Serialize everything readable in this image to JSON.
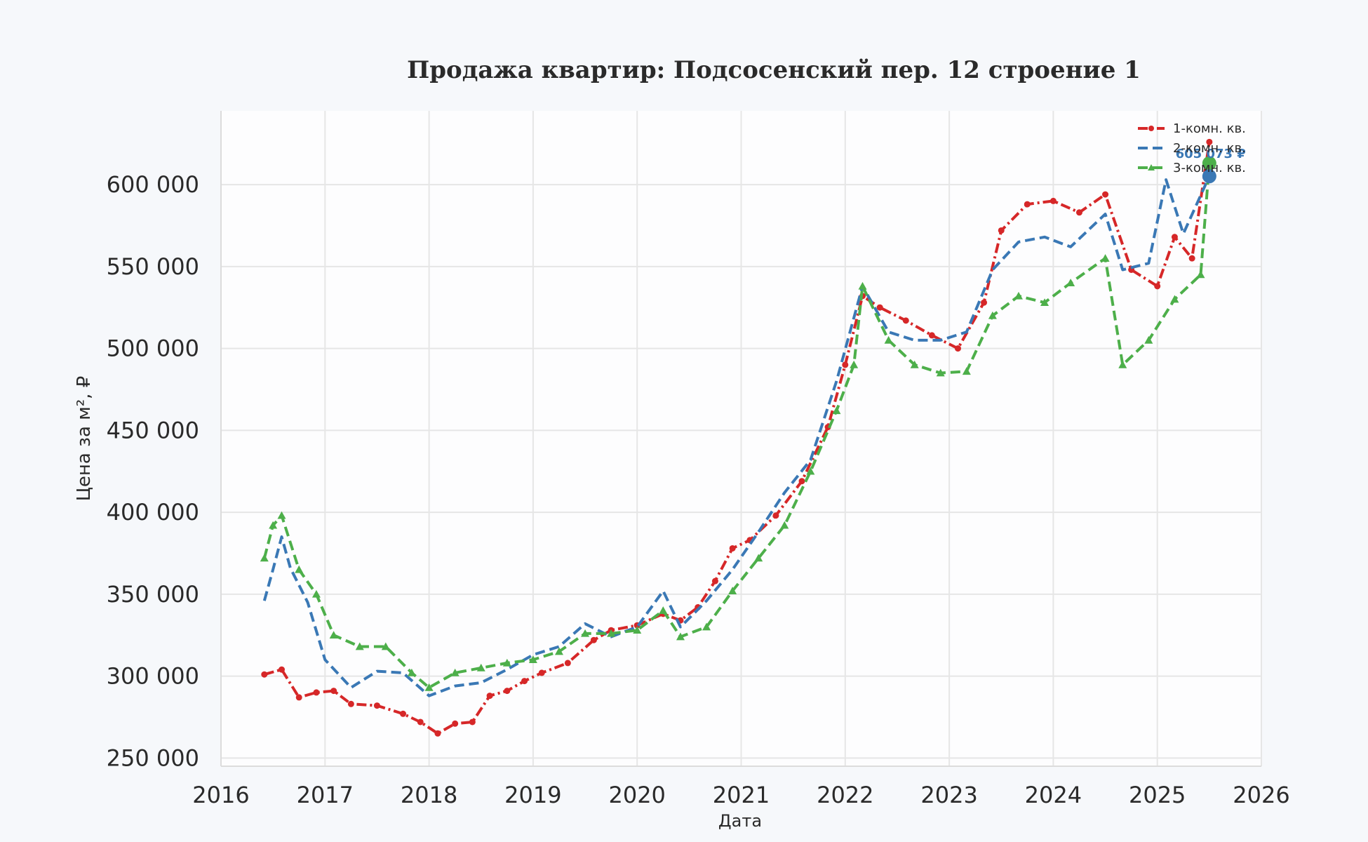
{
  "chart_data": {
    "type": "line",
    "title": "Продажа квартир: Подсосенский пер. 12 строение 1",
    "xlabel": "Дата",
    "ylabel": "Цена за м², ₽",
    "xlim": [
      "2016-01-01",
      "2026-01-01"
    ],
    "ylim": [
      245000,
      645000
    ],
    "x_ticks": [
      "2016",
      "2017",
      "2018",
      "2019",
      "2020",
      "2021",
      "2022",
      "2023",
      "2024",
      "2025",
      "2026"
    ],
    "y_ticks": [
      250000,
      300000,
      350000,
      400000,
      450000,
      500000,
      550000,
      600000
    ],
    "y_tick_labels": [
      "250 000",
      "300 000",
      "350 000",
      "400 000",
      "450 000",
      "500 000",
      "550 000",
      "600 000"
    ],
    "grid": true,
    "legend_position": "top-right",
    "series": [
      {
        "name": "1-комн. кв.",
        "color": "#d62728",
        "style": "dashdot",
        "marker": "circle",
        "points": [
          [
            "2016-06",
            301000
          ],
          [
            "2016-08",
            304000
          ],
          [
            "2016-10",
            287000
          ],
          [
            "2016-12",
            290000
          ],
          [
            "2017-02",
            291000
          ],
          [
            "2017-04",
            283000
          ],
          [
            "2017-07",
            282000
          ],
          [
            "2017-10",
            277000
          ],
          [
            "2017-12",
            272000
          ],
          [
            "2018-02",
            265000
          ],
          [
            "2018-04",
            271000
          ],
          [
            "2018-06",
            272000
          ],
          [
            "2018-08",
            288000
          ],
          [
            "2018-10",
            291000
          ],
          [
            "2018-12",
            297000
          ],
          [
            "2019-02",
            302000
          ],
          [
            "2019-05",
            308000
          ],
          [
            "2019-08",
            322000
          ],
          [
            "2019-10",
            328000
          ],
          [
            "2020-01",
            331000
          ],
          [
            "2020-04",
            338000
          ],
          [
            "2020-06",
            334000
          ],
          [
            "2020-08",
            342000
          ],
          [
            "2020-10",
            358000
          ],
          [
            "2020-12",
            378000
          ],
          [
            "2021-02",
            383000
          ],
          [
            "2021-05",
            398000
          ],
          [
            "2021-08",
            419000
          ],
          [
            "2021-11",
            452000
          ],
          [
            "2022-01",
            490000
          ],
          [
            "2022-03",
            532000
          ],
          [
            "2022-05",
            525000
          ],
          [
            "2022-08",
            517000
          ],
          [
            "2022-11",
            508000
          ],
          [
            "2023-02",
            500000
          ],
          [
            "2023-05",
            528000
          ],
          [
            "2023-07",
            572000
          ],
          [
            "2023-10",
            588000
          ],
          [
            "2024-01",
            590000
          ],
          [
            "2024-04",
            583000
          ],
          [
            "2024-07",
            594000
          ],
          [
            "2024-10",
            548000
          ],
          [
            "2025-01",
            538000
          ],
          [
            "2025-03",
            568000
          ],
          [
            "2025-05",
            555000
          ],
          [
            "2025-07",
            626000
          ]
        ]
      },
      {
        "name": "2-комн. кв.",
        "color": "#3a78b5",
        "style": "dashed",
        "marker": "none",
        "points": [
          [
            "2016-06",
            346000
          ],
          [
            "2016-07",
            365000
          ],
          [
            "2016-08",
            385000
          ],
          [
            "2016-09",
            366000
          ],
          [
            "2016-11",
            345000
          ],
          [
            "2017-01",
            310000
          ],
          [
            "2017-04",
            293000
          ],
          [
            "2017-07",
            303000
          ],
          [
            "2017-10",
            302000
          ],
          [
            "2018-01",
            288000
          ],
          [
            "2018-04",
            294000
          ],
          [
            "2018-07",
            296000
          ],
          [
            "2018-10",
            304000
          ],
          [
            "2019-01",
            313000
          ],
          [
            "2019-04",
            318000
          ],
          [
            "2019-07",
            332000
          ],
          [
            "2019-10",
            324000
          ],
          [
            "2020-01",
            330000
          ],
          [
            "2020-04",
            352000
          ],
          [
            "2020-06",
            330000
          ],
          [
            "2020-09",
            346000
          ],
          [
            "2020-12",
            365000
          ],
          [
            "2021-03",
            388000
          ],
          [
            "2021-06",
            412000
          ],
          [
            "2021-09",
            432000
          ],
          [
            "2021-12",
            480000
          ],
          [
            "2022-03",
            538000
          ],
          [
            "2022-06",
            510000
          ],
          [
            "2022-09",
            505000
          ],
          [
            "2022-12",
            505000
          ],
          [
            "2023-03",
            510000
          ],
          [
            "2023-06",
            548000
          ],
          [
            "2023-09",
            565000
          ],
          [
            "2023-12",
            568000
          ],
          [
            "2024-03",
            562000
          ],
          [
            "2024-07",
            582000
          ],
          [
            "2024-09",
            548000
          ],
          [
            "2024-12",
            552000
          ],
          [
            "2025-02",
            603000
          ],
          [
            "2025-04",
            570000
          ],
          [
            "2025-07",
            605073
          ]
        ]
      },
      {
        "name": "3-комн. кв.",
        "color": "#4daf4a",
        "style": "dashed",
        "marker": "triangle",
        "points": [
          [
            "2016-06",
            372000
          ],
          [
            "2016-07",
            392000
          ],
          [
            "2016-08",
            398000
          ],
          [
            "2016-10",
            365000
          ],
          [
            "2016-12",
            350000
          ],
          [
            "2017-02",
            325000
          ],
          [
            "2017-05",
            318000
          ],
          [
            "2017-08",
            318000
          ],
          [
            "2017-11",
            302000
          ],
          [
            "2018-01",
            293000
          ],
          [
            "2018-04",
            302000
          ],
          [
            "2018-07",
            305000
          ],
          [
            "2018-10",
            308000
          ],
          [
            "2019-01",
            310000
          ],
          [
            "2019-04",
            315000
          ],
          [
            "2019-07",
            326000
          ],
          [
            "2019-10",
            326000
          ],
          [
            "2020-01",
            328000
          ],
          [
            "2020-04",
            340000
          ],
          [
            "2020-06",
            324000
          ],
          [
            "2020-09",
            330000
          ],
          [
            "2020-12",
            352000
          ],
          [
            "2021-03",
            372000
          ],
          [
            "2021-06",
            392000
          ],
          [
            "2021-09",
            425000
          ],
          [
            "2021-12",
            462000
          ],
          [
            "2022-02",
            490000
          ],
          [
            "2022-03",
            538000
          ],
          [
            "2022-06",
            505000
          ],
          [
            "2022-09",
            490000
          ],
          [
            "2022-12",
            485000
          ],
          [
            "2023-03",
            486000
          ],
          [
            "2023-06",
            520000
          ],
          [
            "2023-09",
            532000
          ],
          [
            "2023-12",
            528000
          ],
          [
            "2024-03",
            540000
          ],
          [
            "2024-07",
            555000
          ],
          [
            "2024-09",
            490000
          ],
          [
            "2024-12",
            505000
          ],
          [
            "2025-03",
            530000
          ],
          [
            "2025-06",
            545000
          ],
          [
            "2025-07",
            613000
          ]
        ]
      }
    ],
    "end_labels": [
      {
        "text": "605 073 ₽",
        "color": "#3a78b5",
        "x": "2025-07",
        "y": 605073
      }
    ]
  }
}
